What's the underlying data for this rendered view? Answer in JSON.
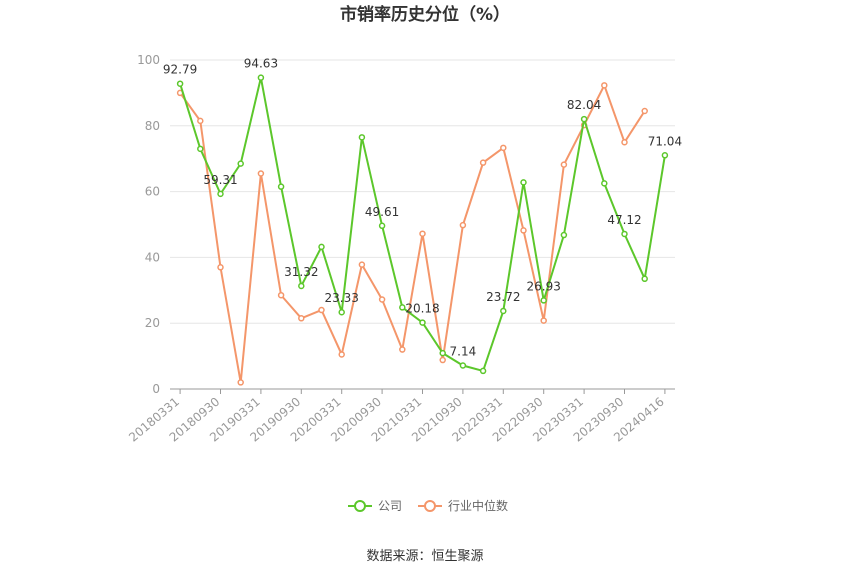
{
  "chart_data": {
    "type": "line",
    "title": "市销率历史分位（%）",
    "source": "数据来源：恒生聚源",
    "ylim": [
      0,
      100
    ],
    "yticks": [
      0,
      20,
      40,
      60,
      80,
      100
    ],
    "xtick_labels": [
      "20180331",
      "20180930",
      "20190331",
      "20190930",
      "20200331",
      "20200930",
      "20210331",
      "20210930",
      "20220331",
      "20220930",
      "20230331",
      "20230930",
      "20240416"
    ],
    "legend_position": "bottom",
    "grid": true,
    "series": [
      {
        "name": "公司",
        "color": "#5cc72b",
        "values": [
          92.79,
          73,
          59.31,
          68.5,
          94.63,
          61.5,
          31.32,
          43.2,
          23.33,
          76.5,
          49.61,
          24.8,
          20.18,
          10.9,
          7.14,
          5.5,
          23.72,
          62.8,
          26.93,
          46.8,
          82.04,
          62.5,
          47.12,
          33.5,
          71.04
        ],
        "labels": {
          "0": "92.79",
          "2": "59.31",
          "4": "94.63",
          "6": "31.32",
          "8": "23.33",
          "10": "49.61",
          "12": "20.18",
          "14": "7.14",
          "16": "23.72",
          "18": "26.93",
          "20": "82.04",
          "22": "47.12",
          "24": "71.04"
        }
      },
      {
        "name": "行业中位数",
        "color": "#f4966a",
        "values": [
          90,
          81.5,
          37,
          2,
          65.5,
          28.5,
          21.5,
          24,
          10.5,
          37.8,
          27.2,
          12,
          47.2,
          8.8,
          49.8,
          68.8,
          73.3,
          48.2,
          20.8,
          68.2,
          80.2,
          92.3,
          75,
          84.5,
          null
        ]
      }
    ]
  }
}
